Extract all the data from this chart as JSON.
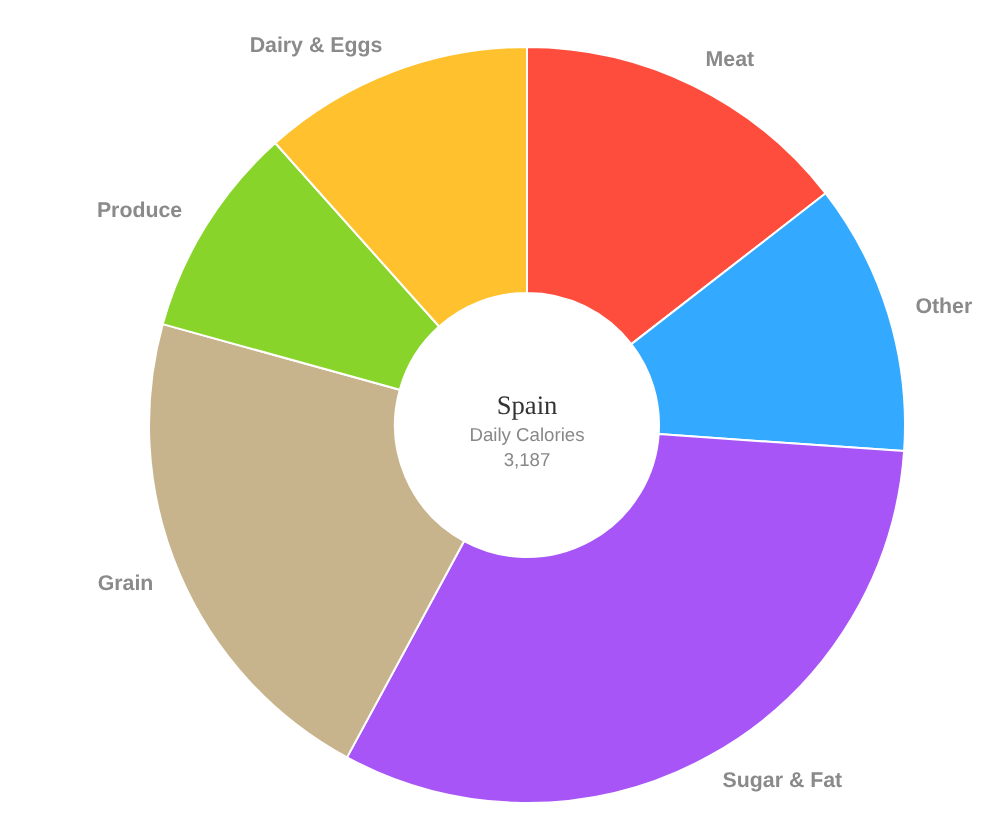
{
  "chart_data": {
    "type": "donut",
    "title": "Spain",
    "subtitle": "Daily Calories",
    "annotations": [
      "3,187"
    ],
    "categories": [
      "Meat",
      "Other",
      "Sugar & Fat",
      "Grain",
      "Produce",
      "Dairy & Eggs"
    ],
    "values": [
      14.5,
      11.6,
      31.8,
      21.4,
      9.1,
      11.6
    ],
    "colors": [
      "#ff4d3d",
      "#33aaff",
      "#a855f7",
      "#c8b48c",
      "#88d42a",
      "#ffc22e"
    ]
  }
}
